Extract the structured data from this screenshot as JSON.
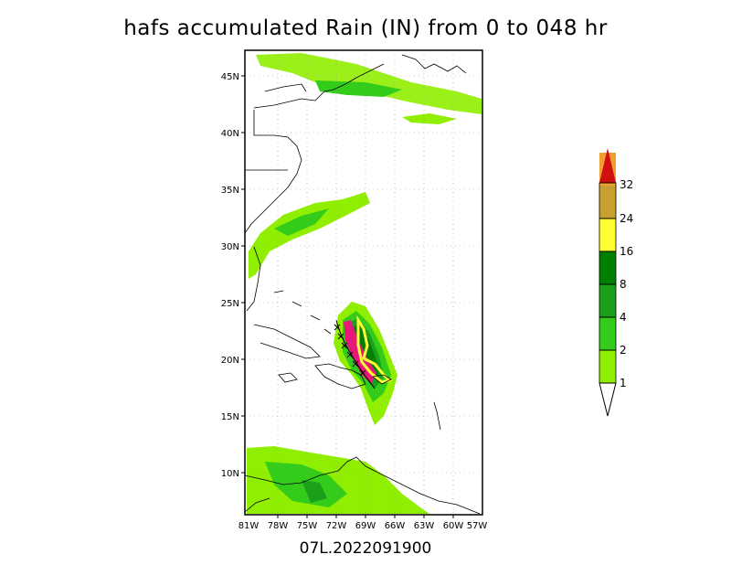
{
  "title": "hafs accumulated Rain (IN) from 0 to 048 hr",
  "footer": "07L.2022091900",
  "map": {
    "lon_range": [
      -81,
      -57
    ],
    "lat_range": [
      6.5,
      47.5
    ],
    "lon_ticks": [
      "81W",
      "78W",
      "75W",
      "72W",
      "69W",
      "66W",
      "63W",
      "60W",
      "57W"
    ],
    "lat_ticks": [
      "45N",
      "40N",
      "35N",
      "30N",
      "25N",
      "20N",
      "15N",
      "10N"
    ]
  },
  "colorbar": {
    "levels": [
      "1",
      "2",
      "4",
      "8",
      "16",
      "24",
      "32"
    ],
    "colors": [
      "#90ee00",
      "#33cc1a",
      "#1aa01a",
      "#007f00",
      "#ffff33",
      "#c8a030",
      "#f0a030",
      "#d01010"
    ]
  },
  "chart_data": {
    "type": "heatmap",
    "title": "hafs accumulated Rain (IN) from 0 to 048 hr",
    "x_range": [
      -81,
      -57
    ],
    "y_range": [
      6.5,
      47.5
    ],
    "levels": [
      1,
      2,
      4,
      8,
      16,
      24,
      32
    ],
    "storm_track_max_rain_region": "near Puerto Rico / Hispaniola, approx 18-25N, 71-66W"
  }
}
